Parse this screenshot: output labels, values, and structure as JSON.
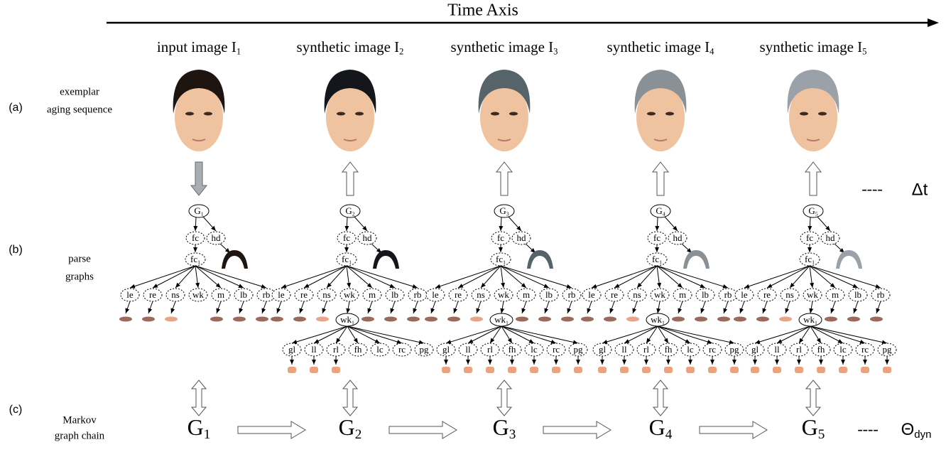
{
  "title": "Time Axis",
  "rows": [
    {
      "tag": "(a)",
      "label": [
        "exemplar",
        "aging sequence"
      ]
    },
    {
      "tag": "(b)",
      "label": [
        "parse",
        "graphs"
      ]
    },
    {
      "tag": "(c)",
      "label": [
        "Markov",
        "graph chain"
      ]
    }
  ],
  "columns": [
    {
      "header": {
        "text": "input image I",
        "sub": "1"
      },
      "root": {
        "text": "G",
        "sub": "1"
      },
      "chain": {
        "text": "G",
        "sub": "1"
      },
      "hair_color": "#1e1510",
      "show_wrinkles": false
    },
    {
      "header": {
        "text": "synthetic image I",
        "sub": "2"
      },
      "root": {
        "text": "G",
        "sub": "2"
      },
      "chain": {
        "text": "G",
        "sub": "2"
      },
      "hair_color": "#15161c",
      "show_wrinkles": true
    },
    {
      "header": {
        "text": "synthetic image I",
        "sub": "3"
      },
      "root": {
        "text": "G",
        "sub": "3"
      },
      "chain": {
        "text": "G",
        "sub": "3"
      },
      "hair_color": "#56646a",
      "show_wrinkles": true
    },
    {
      "header": {
        "text": "synthetic image I",
        "sub": "4"
      },
      "root": {
        "text": "G",
        "sub": "4"
      },
      "chain": {
        "text": "G",
        "sub": "4"
      },
      "hair_color": "#8a9196",
      "show_wrinkles": true
    },
    {
      "header": {
        "text": "synthetic image I",
        "sub": "5"
      },
      "root": {
        "text": "G",
        "sub": "5"
      },
      "chain": {
        "text": "G",
        "sub": "5"
      },
      "hair_color": "#9aa1a8",
      "show_wrinkles": true
    }
  ],
  "parse_graph": {
    "level1": [
      "fc",
      "hd"
    ],
    "fc1": {
      "text": "fc",
      "sub": "1"
    },
    "parts": [
      "le",
      "re",
      "ns",
      "wk",
      "m",
      "lb",
      "rb"
    ],
    "wk1": {
      "text": "wk",
      "sub": "1"
    },
    "wrinkles": [
      "gl",
      "ll",
      "rl",
      "fh",
      "lc",
      "rc",
      "pg"
    ]
  },
  "side_labels": {
    "delta": {
      "dash": "----",
      "text": "Δt"
    },
    "dyn": {
      "dash": "----",
      "text": "Θ",
      "sub": "dyn"
    }
  }
}
